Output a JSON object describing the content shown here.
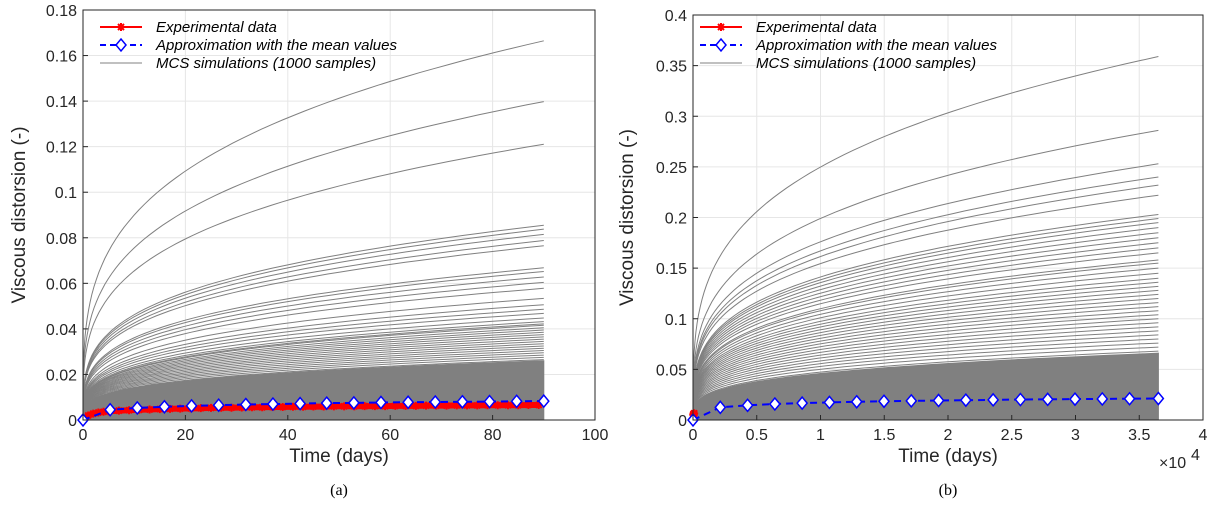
{
  "chart_data": [
    {
      "type": "line",
      "panel_caption": "(a)",
      "xlabel": "Time (days)",
      "ylabel": "Viscous distorsion (-)",
      "xlim": [
        0,
        100
      ],
      "ylim": [
        0,
        0.18
      ],
      "xticks": [
        0,
        20,
        40,
        60,
        80,
        100
      ],
      "xtick_labels": [
        "0",
        "20",
        "40",
        "60",
        "80",
        "100"
      ],
      "yticks": [
        0,
        0.02,
        0.04,
        0.06,
        0.08,
        0.1,
        0.12,
        0.14,
        0.16,
        0.18
      ],
      "ytick_labels": [
        "0",
        "0.02",
        "0.04",
        "0.06",
        "0.08",
        "0.1",
        "0.12",
        "0.14",
        "0.16",
        "0.18"
      ],
      "grid": true,
      "legend_position": "top-left",
      "legend": [
        "Experimental data",
        "Approximation with the mean values",
        "MCS simulations (1000 samples)"
      ],
      "series": [
        {
          "name": "Experimental data",
          "color": "#ff0000",
          "marker": "asterisk",
          "x": [
            0,
            1,
            2,
            3,
            4,
            5,
            7,
            9,
            11,
            13,
            15,
            17,
            19,
            21,
            23,
            25,
            27,
            29,
            31,
            33,
            35,
            37,
            39,
            41,
            43,
            45,
            47,
            49,
            51,
            53,
            55,
            57,
            59,
            61,
            63,
            65,
            67,
            69,
            71,
            73,
            75,
            77,
            79,
            81,
            83,
            85,
            87,
            89
          ],
          "y": [
            0.0,
            0.002,
            0.0028,
            0.0033,
            0.0036,
            0.0038,
            0.0041,
            0.0043,
            0.0045,
            0.0046,
            0.0048,
            0.0049,
            0.005,
            0.0051,
            0.0052,
            0.0053,
            0.0054,
            0.0054,
            0.0055,
            0.0056,
            0.0056,
            0.0057,
            0.0057,
            0.0058,
            0.0058,
            0.0059,
            0.0059,
            0.006,
            0.006,
            0.006,
            0.0061,
            0.0061,
            0.0061,
            0.0062,
            0.0062,
            0.0062,
            0.0063,
            0.0063,
            0.0063,
            0.0064,
            0.0064,
            0.0064,
            0.0065,
            0.0065,
            0.0065,
            0.0065,
            0.0066,
            0.0066
          ]
        },
        {
          "name": "Approximation with the mean values",
          "color": "#0000ff",
          "marker": "diamond",
          "x": [
            0,
            5.3,
            10.6,
            15.9,
            21.2,
            26.5,
            31.8,
            37.1,
            42.4,
            47.6,
            52.9,
            58.2,
            63.5,
            68.8,
            74.1,
            79.4,
            84.7,
            90
          ],
          "y": [
            0.0,
            0.0045,
            0.0053,
            0.0058,
            0.0062,
            0.0065,
            0.0068,
            0.007,
            0.0072,
            0.0074,
            0.0075,
            0.0077,
            0.0078,
            0.0079,
            0.008,
            0.0081,
            0.0082,
            0.0083
          ]
        },
        {
          "name": "MCS simulations (1000 samples)",
          "color": "#808080",
          "shape": "power-law curves, final values at t=90 days",
          "final_values": [
            0.1665,
            0.1398,
            0.1211,
            0.0855,
            0.0838,
            0.0815,
            0.0788,
            0.0765,
            0.0668,
            0.0652,
            0.0628,
            0.0604,
            0.0578,
            0.0534,
            0.0506,
            0.0486,
            0.0468,
            0.0448,
            0.0432,
            0.0422,
            0.0416,
            0.0405,
            0.0395,
            0.0385,
            0.0375,
            0.0365,
            0.0355,
            0.0345,
            0.0335,
            0.0325,
            0.0315,
            0.0305,
            0.0295,
            0.0285,
            0.0275,
            0.0265
          ]
        }
      ]
    },
    {
      "type": "line",
      "panel_caption": "(b)",
      "xlabel": "Time (days)",
      "ylabel": "Viscous distorsion (-)",
      "x_multiplier_label": "×10",
      "x_multiplier_exp": "4",
      "xlim": [
        0,
        40000
      ],
      "ylim": [
        0,
        0.4
      ],
      "xticks": [
        0,
        5000,
        10000,
        15000,
        20000,
        25000,
        30000,
        35000,
        40000
      ],
      "xtick_labels": [
        "0",
        "0.5",
        "1",
        "1.5",
        "2",
        "2.5",
        "3",
        "3.5",
        "4"
      ],
      "yticks": [
        0,
        0.05,
        0.1,
        0.15,
        0.2,
        0.25,
        0.3,
        0.35,
        0.4
      ],
      "ytick_labels": [
        "0",
        "0.05",
        "0.1",
        "0.15",
        "0.2",
        "0.25",
        "0.3",
        "0.35",
        "0.4"
      ],
      "grid": true,
      "legend_position": "top-left",
      "legend": [
        "Experimental data",
        "Approximation with the mean values",
        "MCS simulations (1000 samples)"
      ],
      "series": [
        {
          "name": "Experimental data",
          "color": "#ff0000",
          "marker": "asterisk",
          "x": [
            0,
            20,
            40,
            60,
            80,
            90
          ],
          "y": [
            0.0,
            0.0052,
            0.0058,
            0.0062,
            0.0065,
            0.0066
          ]
        },
        {
          "name": "Approximation with the mean values",
          "color": "#0000ff",
          "marker": "diamond",
          "x": [
            0,
            2140,
            4280,
            6420,
            8560,
            10700,
            12840,
            14980,
            17120,
            19260,
            21400,
            23540,
            25680,
            27820,
            29960,
            32100,
            34240,
            36500
          ],
          "y": [
            0.0,
            0.0125,
            0.0145,
            0.0158,
            0.0167,
            0.0174,
            0.018,
            0.0185,
            0.0189,
            0.0193,
            0.0196,
            0.0199,
            0.0202,
            0.0204,
            0.0206,
            0.0208,
            0.021,
            0.0212
          ]
        },
        {
          "name": "MCS simulations (1000 samples)",
          "color": "#808080",
          "shape": "power-law curves, final values at t=36500 days",
          "final_values": [
            0.359,
            0.286,
            0.253,
            0.24,
            0.232,
            0.222,
            0.203,
            0.199,
            0.195,
            0.19,
            0.185,
            0.18,
            0.175,
            0.17,
            0.165,
            0.158,
            0.155,
            0.15,
            0.145,
            0.14,
            0.136,
            0.132,
            0.128,
            0.124,
            0.12,
            0.116,
            0.112,
            0.108,
            0.104,
            0.1,
            0.096,
            0.092,
            0.088,
            0.084,
            0.08,
            0.076,
            0.072,
            0.068
          ]
        }
      ]
    }
  ]
}
